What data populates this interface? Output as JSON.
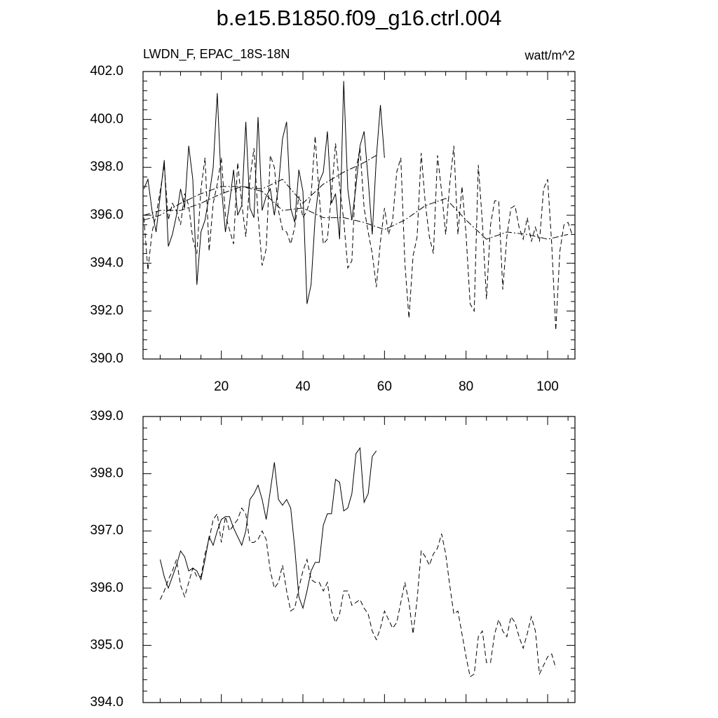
{
  "title": "b.e15.B1850.f09_g16.ctrl.004",
  "chart_data": [
    {
      "type": "line",
      "left_string": "LWDN_F, EPAC_18S-18N",
      "right_string": "watt/m^2",
      "xlim": [
        0.8,
        106.7
      ],
      "ylim": [
        390,
        402
      ],
      "xticks": [
        20,
        40,
        60,
        80,
        100
      ],
      "yticks": [
        {
          "value": 390,
          "label": "390.0"
        },
        {
          "value": 392,
          "label": "392.0"
        },
        {
          "value": 394,
          "label": "394.0"
        },
        {
          "value": 396,
          "label": "396.0"
        },
        {
          "value": 398,
          "label": "398.0"
        },
        {
          "value": 400,
          "label": "400.0"
        },
        {
          "value": 402,
          "label": "402.0"
        }
      ],
      "series": [
        {
          "color": "#000000",
          "dash": "solid",
          "x": [
            1,
            2,
            3,
            4,
            5,
            6,
            7,
            8,
            9,
            10,
            11,
            12,
            13,
            14,
            15,
            16,
            17,
            18,
            19,
            20,
            21,
            22,
            23,
            24,
            25,
            26,
            27,
            28,
            29,
            30,
            31,
            32,
            33,
            34,
            35,
            36,
            37,
            38,
            39,
            40,
            41,
            42,
            43,
            44,
            45,
            46,
            47,
            48,
            49,
            50,
            51,
            52,
            53,
            54,
            55,
            56,
            57,
            58,
            59,
            60
          ],
          "values": [
            397.1,
            397.5,
            396.2,
            395.3,
            396.8,
            398.3,
            394.7,
            395.2,
            396.0,
            397.1,
            396.3,
            398.9,
            397.5,
            393.1,
            395.3,
            395.8,
            396.8,
            398.0,
            401.1,
            397.2,
            395.3,
            396.5,
            397.9,
            396.0,
            396.4,
            399.9,
            396.3,
            395.9,
            400.1,
            396.2,
            396.8,
            397.1,
            396.0,
            397.2,
            399.2,
            399.9,
            396.3,
            395.7,
            397.9,
            397.0,
            392.3,
            393.1,
            395.9,
            397.4,
            397.8,
            399.5,
            396.5,
            396.9,
            395.0,
            401.6,
            397.1,
            395.8,
            397.2,
            398.9,
            399.5,
            397.5,
            395.2,
            398.4,
            400.6,
            398.4
          ]
        },
        {
          "color": "#000000",
          "dash": "dashed",
          "x": [
            1,
            2,
            3,
            4,
            5,
            6,
            7,
            8,
            9,
            10,
            11,
            12,
            13,
            14,
            15,
            16,
            17,
            18,
            19,
            20,
            21,
            22,
            23,
            24,
            25,
            26,
            27,
            28,
            29,
            30,
            31,
            32,
            33,
            34,
            35,
            36,
            37,
            38,
            39,
            40,
            41,
            42,
            43,
            44,
            45,
            46,
            47,
            48,
            49,
            50,
            51,
            52,
            53,
            54,
            55,
            56,
            57,
            58,
            59,
            60,
            61,
            62,
            63,
            64,
            65,
            66,
            67,
            68,
            69,
            70,
            71,
            72,
            73,
            74,
            75,
            76,
            77,
            78,
            79,
            80,
            81,
            82,
            83,
            84,
            85,
            86,
            87,
            88,
            89,
            90,
            91,
            92,
            93,
            94,
            95,
            96,
            97,
            98,
            99,
            100,
            101,
            102,
            103,
            104,
            105,
            106
          ],
          "values": [
            395.9,
            393.7,
            395.3,
            396.0,
            397.0,
            398.1,
            395.8,
            396.5,
            396.2,
            395.6,
            396.9,
            396.4,
            395.0,
            394.4,
            397.1,
            398.4,
            394.5,
            396.5,
            397.3,
            398.4,
            396.0,
            395.4,
            394.8,
            398.2,
            396.5,
            395.1,
            397.5,
            398.8,
            396.0,
            393.9,
            394.6,
            398.5,
            398.0,
            396.2,
            395.4,
            395.3,
            394.8,
            395.5,
            396.8,
            395.9,
            396.2,
            396.8,
            399.3,
            396.8,
            394.8,
            395.0,
            396.9,
            399.0,
            397.2,
            395.8,
            393.8,
            394.1,
            397.9,
            398.8,
            396.3,
            395.3,
            394.4,
            393.0,
            394.9,
            396.3,
            395.2,
            395.8,
            397.8,
            398.4,
            394.0,
            391.7,
            394.3,
            395.1,
            398.6,
            396.5,
            395.1,
            394.4,
            398.5,
            397.0,
            395.2,
            397.3,
            398.9,
            395.2,
            397.2,
            395.2,
            392.3,
            392.0,
            398.1,
            395.7,
            392.5,
            395.6,
            396.6,
            396.6,
            392.9,
            395.1,
            396.3,
            396.4,
            395.5,
            395.0,
            395.9,
            394.9,
            395.5,
            394.9,
            397.1,
            397.5,
            394.8,
            391.2,
            394.5,
            395.6,
            395.7,
            395.2
          ]
        },
        {
          "color": "#000000",
          "dash": "dashdot",
          "x": [
            1,
            5,
            10,
            15,
            20,
            25,
            30,
            35,
            40,
            45,
            50,
            55,
            58
          ],
          "values": [
            395.8,
            396.0,
            396.5,
            396.9,
            397.2,
            397.2,
            397.1,
            397.5,
            396.5,
            397.3,
            397.8,
            398.2,
            398.5
          ]
        },
        {
          "color": "#000000",
          "dash": "dashdot",
          "x": [
            1,
            5,
            10,
            15,
            20,
            25,
            30,
            35,
            40,
            45,
            50,
            55,
            60,
            65,
            70,
            75,
            80,
            85,
            90,
            95,
            100,
            105
          ],
          "values": [
            396.0,
            396.2,
            396.2,
            396.5,
            396.9,
            397.2,
            397.0,
            396.2,
            396.3,
            395.9,
            395.9,
            395.7,
            395.4,
            395.8,
            396.4,
            396.7,
            395.8,
            395.0,
            395.3,
            395.2,
            395.0,
            395.2
          ]
        }
      ]
    },
    {
      "type": "line",
      "xlim": [
        0.8,
        106.7
      ],
      "ylim": [
        394,
        399
      ],
      "xticks": [
        20,
        40,
        60,
        80,
        100
      ],
      "yticks": [
        {
          "value": 394,
          "label": "394.0"
        },
        {
          "value": 395,
          "label": "395.0"
        },
        {
          "value": 396,
          "label": "396.0"
        },
        {
          "value": 397,
          "label": "397.0"
        },
        {
          "value": 398,
          "label": "398.0"
        },
        {
          "value": 399,
          "label": "399.0"
        }
      ],
      "series": [
        {
          "color": "#000000",
          "dash": "solid",
          "x": [
            5,
            6,
            7,
            8,
            9,
            10,
            11,
            12,
            13,
            14,
            15,
            16,
            17,
            18,
            19,
            20,
            21,
            22,
            23,
            24,
            25,
            26,
            27,
            28,
            29,
            30,
            31,
            32,
            33,
            34,
            35,
            36,
            37,
            38,
            39,
            40,
            41,
            42,
            43,
            44,
            45,
            46,
            47,
            48,
            49,
            50,
            51,
            52,
            53,
            54,
            55,
            56,
            57,
            58
          ],
          "values": [
            396.5,
            396.2,
            396.0,
            396.2,
            396.4,
            396.65,
            396.55,
            396.3,
            396.35,
            396.3,
            396.15,
            396.5,
            396.9,
            396.75,
            397.0,
            397.2,
            397.25,
            397.25,
            397.05,
            396.9,
            396.75,
            397.0,
            397.55,
            397.65,
            397.8,
            397.55,
            397.2,
            397.7,
            398.2,
            397.55,
            397.45,
            397.55,
            397.4,
            396.7,
            395.85,
            395.65,
            395.95,
            396.3,
            396.45,
            396.45,
            397.1,
            397.3,
            397.3,
            397.9,
            397.85,
            397.35,
            397.4,
            397.65,
            398.35,
            398.45,
            397.5,
            397.65,
            398.3,
            398.4
          ]
        },
        {
          "color": "#000000",
          "dash": "dashed",
          "x": [
            5,
            6,
            7,
            8,
            9,
            10,
            11,
            12,
            13,
            14,
            15,
            16,
            17,
            18,
            19,
            20,
            21,
            22,
            23,
            24,
            25,
            26,
            27,
            28,
            29,
            30,
            31,
            32,
            33,
            34,
            35,
            36,
            37,
            38,
            39,
            40,
            41,
            42,
            43,
            44,
            45,
            46,
            47,
            48,
            49,
            50,
            51,
            52,
            53,
            54,
            55,
            56,
            57,
            58,
            59,
            60,
            61,
            62,
            63,
            64,
            65,
            66,
            67,
            68,
            69,
            70,
            71,
            72,
            73,
            74,
            75,
            76,
            77,
            78,
            79,
            80,
            81,
            82,
            83,
            84,
            85,
            86,
            87,
            88,
            89,
            90,
            91,
            92,
            93,
            94,
            95,
            96,
            97,
            98,
            99,
            100,
            101,
            102
          ],
          "values": [
            395.8,
            395.95,
            396.15,
            396.3,
            396.5,
            396.05,
            395.85,
            396.1,
            396.35,
            396.2,
            396.2,
            396.6,
            396.85,
            397.2,
            397.3,
            396.8,
            397.25,
            397.0,
            397.1,
            397.2,
            397.4,
            397.3,
            396.8,
            396.8,
            396.85,
            397.0,
            396.85,
            396.3,
            396.0,
            396.1,
            396.4,
            395.95,
            395.6,
            395.65,
            396.0,
            396.3,
            396.5,
            396.15,
            396.1,
            396.1,
            395.95,
            396.1,
            395.6,
            395.4,
            395.55,
            395.95,
            395.95,
            395.7,
            395.75,
            395.8,
            395.65,
            395.55,
            395.25,
            395.1,
            395.3,
            395.6,
            395.45,
            395.3,
            395.4,
            395.75,
            396.1,
            395.75,
            395.2,
            395.8,
            396.65,
            396.55,
            396.4,
            396.6,
            396.7,
            396.95,
            396.6,
            396.05,
            395.55,
            395.6,
            395.2,
            394.8,
            394.45,
            394.5,
            395.15,
            395.25,
            394.7,
            394.7,
            395.2,
            395.45,
            395.25,
            395.15,
            395.5,
            395.4,
            395.15,
            394.95,
            395.2,
            395.5,
            395.25,
            394.5,
            394.65,
            394.8,
            394.85,
            394.6
          ]
        }
      ]
    }
  ]
}
